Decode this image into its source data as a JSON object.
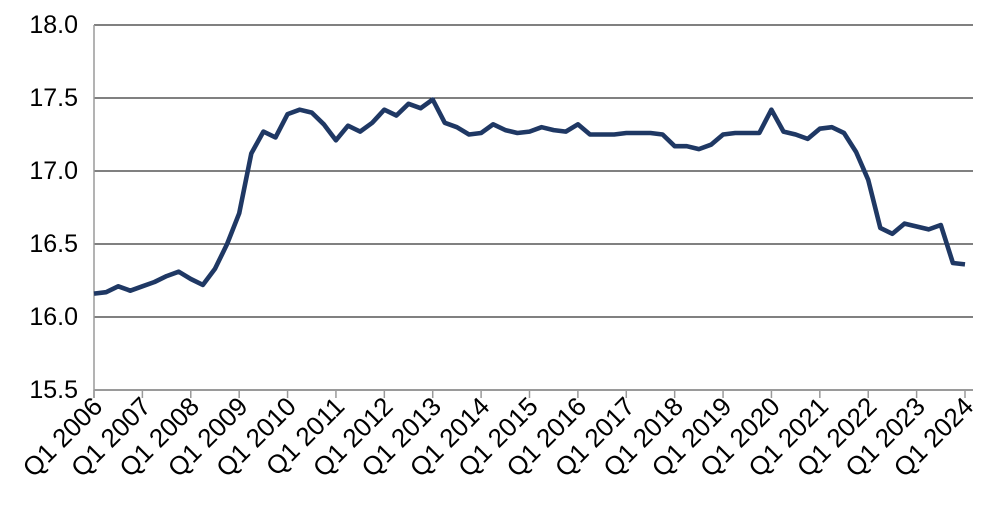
{
  "page": {
    "background": "#ffffff"
  },
  "chart_data": {
    "type": "line",
    "title": "",
    "legend": "none",
    "grid": "horizontal",
    "ylim": [
      15.5,
      18.0
    ],
    "y_ticks": [
      "15.5",
      "16.0",
      "16.5",
      "17.0",
      "17.5",
      "18.0"
    ],
    "x_tick_labels": [
      "Q1 2006",
      "Q1 2007",
      "Q1 2008",
      "Q1 2009",
      "Q1 2010",
      "Q1 2011",
      "Q1 2012",
      "Q1 2013",
      "Q1 2014",
      "Q1 2015",
      "Q1 2016",
      "Q1 2017",
      "Q1 2018",
      "Q1 2019",
      "Q1 2020",
      "Q1 2021",
      "Q1 2022",
      "Q1 2023",
      "Q1 2024"
    ],
    "x": [
      "Q1 2006",
      "Q2 2006",
      "Q3 2006",
      "Q4 2006",
      "Q1 2007",
      "Q2 2007",
      "Q3 2007",
      "Q4 2007",
      "Q1 2008",
      "Q2 2008",
      "Q3 2008",
      "Q4 2008",
      "Q1 2009",
      "Q2 2009",
      "Q3 2009",
      "Q4 2009",
      "Q1 2010",
      "Q2 2010",
      "Q3 2010",
      "Q4 2010",
      "Q1 2011",
      "Q2 2011",
      "Q3 2011",
      "Q4 2011",
      "Q1 2012",
      "Q2 2012",
      "Q3 2012",
      "Q4 2012",
      "Q1 2013",
      "Q2 2013",
      "Q3 2013",
      "Q4 2013",
      "Q1 2014",
      "Q2 2014",
      "Q3 2014",
      "Q4 2014",
      "Q1 2015",
      "Q2 2015",
      "Q3 2015",
      "Q4 2015",
      "Q1 2016",
      "Q2 2016",
      "Q3 2016",
      "Q4 2016",
      "Q1 2017",
      "Q2 2017",
      "Q3 2017",
      "Q4 2017",
      "Q1 2018",
      "Q2 2018",
      "Q3 2018",
      "Q4 2018",
      "Q1 2019",
      "Q2 2019",
      "Q3 2019",
      "Q4 2019",
      "Q1 2020",
      "Q2 2020",
      "Q3 2020",
      "Q4 2020",
      "Q1 2021",
      "Q2 2021",
      "Q3 2021",
      "Q4 2021",
      "Q1 2022",
      "Q2 2022",
      "Q3 2022",
      "Q4 2022",
      "Q1 2023",
      "Q2 2023",
      "Q3 2023",
      "Q4 2023",
      "Q1 2024"
    ],
    "values": [
      16.16,
      16.17,
      16.21,
      16.18,
      16.21,
      16.24,
      16.28,
      16.31,
      16.26,
      16.22,
      16.33,
      16.5,
      16.71,
      17.12,
      17.27,
      17.23,
      17.39,
      17.42,
      17.4,
      17.32,
      17.21,
      17.31,
      17.27,
      17.33,
      17.42,
      17.38,
      17.46,
      17.43,
      17.49,
      17.33,
      17.3,
      17.25,
      17.26,
      17.32,
      17.28,
      17.26,
      17.27,
      17.3,
      17.28,
      17.27,
      17.32,
      17.25,
      17.25,
      17.25,
      17.26,
      17.26,
      17.26,
      17.25,
      17.17,
      17.17,
      17.15,
      17.18,
      17.25,
      17.26,
      17.26,
      17.26,
      17.42,
      17.27,
      17.25,
      17.22,
      17.29,
      17.3,
      17.26,
      17.13,
      16.94,
      16.61,
      16.57,
      16.64,
      16.62,
      16.6,
      16.63,
      16.37,
      16.36
    ],
    "colors": {
      "line": "#1f3864",
      "gridline": "#000000",
      "axis": "#9a9a9a",
      "labels": "#000000"
    }
  }
}
